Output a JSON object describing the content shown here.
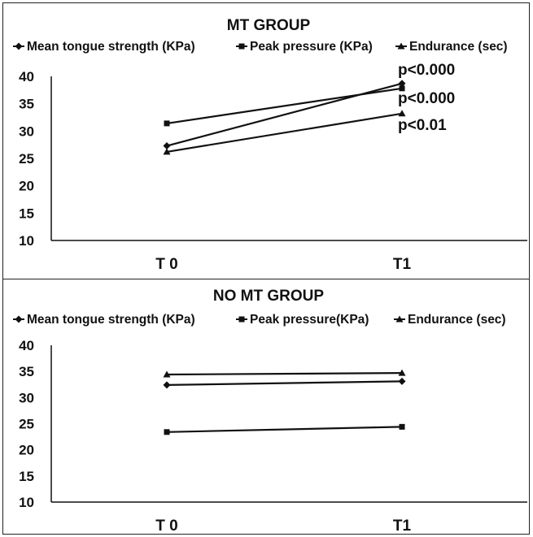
{
  "chart_data": [
    {
      "type": "line",
      "title": "MT GROUP",
      "categories": [
        "T 0",
        "T1"
      ],
      "ylim": [
        10,
        40
      ],
      "yticks": [
        10,
        15,
        20,
        25,
        30,
        35,
        40
      ],
      "grid": false,
      "legend_position": "top",
      "series": [
        {
          "name": "Mean tongue strength (KPa)",
          "marker": "diamond",
          "values": [
            27.3,
            38.7
          ]
        },
        {
          "name": "Peak pressure (KPa)",
          "marker": "square",
          "values": [
            31.4,
            37.8
          ]
        },
        {
          "name": "Endurance (sec)",
          "marker": "triangle",
          "values": [
            26.2,
            33.2
          ]
        }
      ],
      "annotations": [
        "p<0.000",
        "p<0.000",
        "p<0.01"
      ]
    },
    {
      "type": "line",
      "title": "NO MT GROUP",
      "categories": [
        "T 0",
        "T1"
      ],
      "ylim": [
        10,
        40
      ],
      "yticks": [
        10,
        15,
        20,
        25,
        30,
        35,
        40
      ],
      "grid": false,
      "legend_position": "top",
      "series": [
        {
          "name": "Mean tongue strength (KPa)",
          "marker": "diamond",
          "values": [
            32.4,
            33.1
          ]
        },
        {
          "name": "Peak pressure(KPa)",
          "marker": "square",
          "values": [
            23.4,
            24.4
          ]
        },
        {
          "name": "Endurance (sec)",
          "marker": "triangle",
          "values": [
            34.4,
            34.7
          ]
        }
      ],
      "annotations": []
    }
  ]
}
